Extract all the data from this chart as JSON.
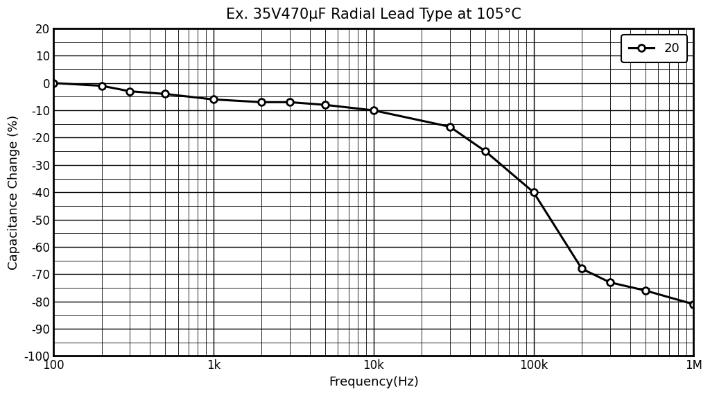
{
  "title": "Ex. 35V470μF Radial Lead Type at 105°C",
  "xlabel": "Frequency(Hz)",
  "ylabel": "Capacitance Change (%)",
  "legend_label": "20",
  "x_data": [
    100,
    200,
    300,
    500,
    1000,
    2000,
    3000,
    5000,
    10000,
    30000,
    50000,
    100000,
    200000,
    300000,
    500000,
    1000000
  ],
  "y_data": [
    0,
    -1,
    -3,
    -4,
    -6,
    -7,
    -7,
    -8,
    -10,
    -16,
    -25,
    -40,
    -68,
    -73,
    -76,
    -81
  ],
  "xlim": [
    100,
    1000000
  ],
  "ylim": [
    -100,
    20
  ],
  "yticks": [
    20,
    10,
    0,
    -10,
    -20,
    -30,
    -40,
    -50,
    -60,
    -70,
    -80,
    -90,
    -100
  ],
  "xtick_labels": [
    "100",
    "1k",
    "10k",
    "100k",
    "1M"
  ],
  "xtick_values": [
    100,
    1000,
    10000,
    100000,
    1000000
  ],
  "line_color": "#000000",
  "marker": "o",
  "marker_size": 7,
  "line_width": 2.2,
  "title_fontsize": 15,
  "label_fontsize": 13,
  "tick_fontsize": 12,
  "legend_fontsize": 13,
  "background_color": "#ffffff",
  "grid_color": "#000000",
  "grid_major_linewidth": 1.0,
  "grid_minor_linewidth": 0.6,
  "spine_linewidth": 2.0
}
